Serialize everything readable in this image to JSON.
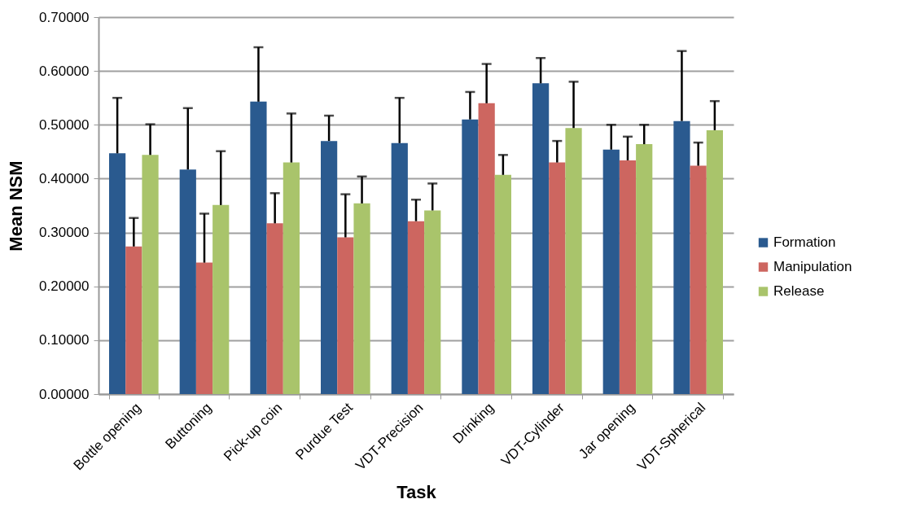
{
  "chart_data": {
    "type": "bar",
    "xlabel": "Task",
    "ylabel": "Mean NSM",
    "categories": [
      "Bottle opening",
      "Buttoning",
      "Pick-up coin",
      "Purdue Test",
      "VDT-Precision",
      "Drinking",
      "VDT-Cylinder",
      "Jar opening",
      "VDT-Spherical"
    ],
    "series": [
      {
        "name": "Formation",
        "color": "#2a5a8f",
        "values": [
          0.447,
          0.417,
          0.543,
          0.47,
          0.466,
          0.51,
          0.577,
          0.454,
          0.507
        ],
        "errors": [
          [
            0.447,
            0.55
          ],
          [
            0.417,
            0.531
          ],
          [
            0.543,
            0.644
          ],
          [
            0.47,
            0.517
          ],
          [
            0.466,
            0.55
          ],
          [
            0.51,
            0.561
          ],
          [
            0.577,
            0.624
          ],
          [
            0.454,
            0.5
          ],
          [
            0.507,
            0.637
          ]
        ]
      },
      {
        "name": "Manipulation",
        "color": "#cd6660",
        "values": [
          0.274,
          0.244,
          0.317,
          0.291,
          0.321,
          0.54,
          0.43,
          0.434,
          0.424
        ],
        "errors": [
          [
            0.274,
            0.327
          ],
          [
            0.244,
            0.335
          ],
          [
            0.317,
            0.373
          ],
          [
            0.291,
            0.371
          ],
          [
            0.321,
            0.361
          ],
          [
            0.54,
            0.613
          ],
          [
            0.43,
            0.47
          ],
          [
            0.434,
            0.478
          ],
          [
            0.424,
            0.467
          ]
        ]
      },
      {
        "name": "Release",
        "color": "#a9c46b",
        "values": [
          0.444,
          0.351,
          0.43,
          0.354,
          0.341,
          0.407,
          0.494,
          0.464,
          0.49
        ],
        "errors": [
          [
            0.444,
            0.501
          ],
          [
            0.351,
            0.451
          ],
          [
            0.43,
            0.521
          ],
          [
            0.354,
            0.404
          ],
          [
            0.341,
            0.391
          ],
          [
            0.407,
            0.444
          ],
          [
            0.494,
            0.58
          ],
          [
            0.464,
            0.5
          ],
          [
            0.49,
            0.544
          ]
        ]
      }
    ],
    "ylim": [
      0,
      0.7
    ],
    "yticks": [
      {
        "value": 0,
        "label": "0.00000"
      },
      {
        "value": 0.1,
        "label": "0.10000"
      },
      {
        "value": 0.2,
        "label": "0.20000"
      },
      {
        "value": 0.3,
        "label": "0.30000"
      },
      {
        "value": 0.4,
        "label": "0.40000"
      },
      {
        "value": 0.5,
        "label": "0.50000"
      },
      {
        "value": 0.6,
        "label": "0.60000"
      },
      {
        "value": 0.7,
        "label": "0.70000"
      }
    ],
    "grid": "y",
    "legend": "right"
  }
}
